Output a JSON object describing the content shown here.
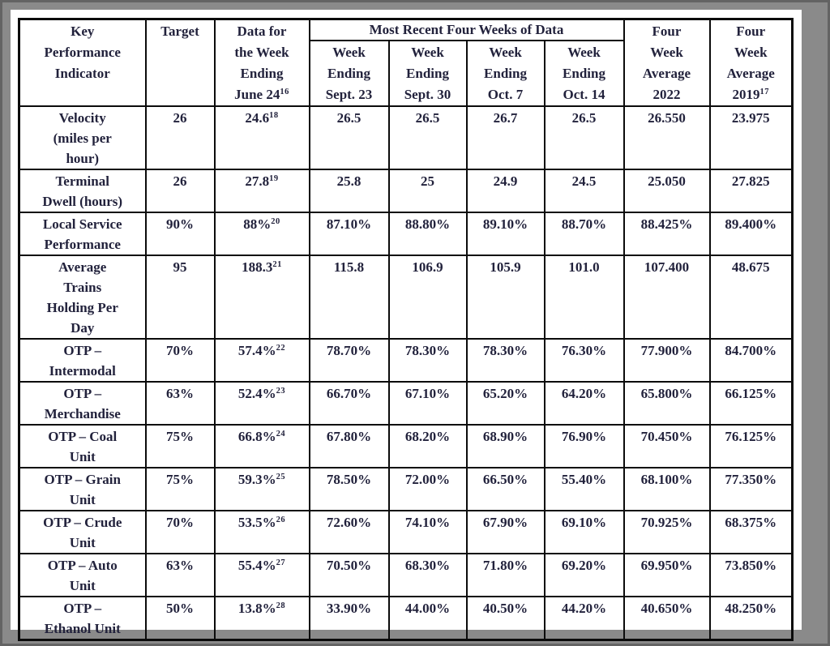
{
  "page": {
    "background_color": "#8a8a8a",
    "paper_color": "#ffffff",
    "text_color": "#22223c",
    "border_color": "#0b0b0b"
  },
  "table": {
    "header": {
      "kpi": "Key\nPerformance\nIndicator",
      "target": "Target",
      "june_week": {
        "text": "Data for\nthe Week\nEnding\nJune 24",
        "footnote": "16"
      },
      "recent_group": "Most Recent Four Weeks of Data",
      "weeks": [
        "Week\nEnding\nSept. 23",
        "Week\nEnding\nSept. 30",
        "Week\nEnding\nOct. 7",
        "Week\nEnding\nOct. 14"
      ],
      "avg_2022": "Four\nWeek\nAverage\n2022",
      "avg_2019": {
        "text": "Four\nWeek\nAverage\n2019",
        "footnote": "17"
      }
    },
    "rows": [
      {
        "kpi": "Velocity\n(miles per\nhour)",
        "target": "26",
        "june": "24.6",
        "june_footnote": "18",
        "weeks": [
          "26.5",
          "26.5",
          "26.7",
          "26.5"
        ],
        "avg_2022": "26.550",
        "avg_2019": "23.975"
      },
      {
        "kpi": "Terminal\nDwell (hours)",
        "target": "26",
        "june": "27.8",
        "june_footnote": "19",
        "weeks": [
          "25.8",
          "25",
          "24.9",
          "24.5"
        ],
        "avg_2022": "25.050",
        "avg_2019": "27.825"
      },
      {
        "kpi": "Local Service\nPerformance",
        "target": "90%",
        "june": "88%",
        "june_footnote": "20",
        "weeks": [
          "87.10%",
          "88.80%",
          "89.10%",
          "88.70%"
        ],
        "avg_2022": "88.425%",
        "avg_2019": "89.400%"
      },
      {
        "kpi": "Average\nTrains\nHolding Per\nDay",
        "target": "95",
        "june": "188.3",
        "june_footnote": "21",
        "weeks": [
          "115.8",
          "106.9",
          "105.9",
          "101.0"
        ],
        "avg_2022": "107.400",
        "avg_2019": "48.675"
      },
      {
        "kpi": "OTP –\nIntermodal",
        "target": "70%",
        "june": "57.4%",
        "june_footnote": "22",
        "weeks": [
          "78.70%",
          "78.30%",
          "78.30%",
          "76.30%"
        ],
        "avg_2022": "77.900%",
        "avg_2019": "84.700%"
      },
      {
        "kpi": "OTP –\nMerchandise",
        "target": "63%",
        "june": "52.4%",
        "june_footnote": "23",
        "weeks": [
          "66.70%",
          "67.10%",
          "65.20%",
          "64.20%"
        ],
        "avg_2022": "65.800%",
        "avg_2019": "66.125%"
      },
      {
        "kpi": "OTP – Coal\nUnit",
        "target": "75%",
        "june": "66.8%",
        "june_footnote": "24",
        "weeks": [
          "67.80%",
          "68.20%",
          "68.90%",
          "76.90%"
        ],
        "avg_2022": "70.450%",
        "avg_2019": "76.125%"
      },
      {
        "kpi": "OTP – Grain\nUnit",
        "target": "75%",
        "june": "59.3%",
        "june_footnote": "25",
        "weeks": [
          "78.50%",
          "72.00%",
          "66.50%",
          "55.40%"
        ],
        "avg_2022": "68.100%",
        "avg_2019": "77.350%"
      },
      {
        "kpi": "OTP – Crude\nUnit",
        "target": "70%",
        "june": "53.5%",
        "june_footnote": "26",
        "weeks": [
          "72.60%",
          "74.10%",
          "67.90%",
          "69.10%"
        ],
        "avg_2022": "70.925%",
        "avg_2019": "68.375%"
      },
      {
        "kpi": "OTP – Auto\nUnit",
        "target": "63%",
        "june": "55.4%",
        "june_footnote": "27",
        "weeks": [
          "70.50%",
          "68.30%",
          "71.80%",
          "69.20%"
        ],
        "avg_2022": "69.950%",
        "avg_2019": "73.850%"
      },
      {
        "kpi": "OTP –\nEthanol Unit",
        "target": "50%",
        "june": "13.8%",
        "june_footnote": "28",
        "weeks": [
          "33.90%",
          "44.00%",
          "40.50%",
          "44.20%"
        ],
        "avg_2022": "40.650%",
        "avg_2019": "48.250%"
      }
    ]
  }
}
